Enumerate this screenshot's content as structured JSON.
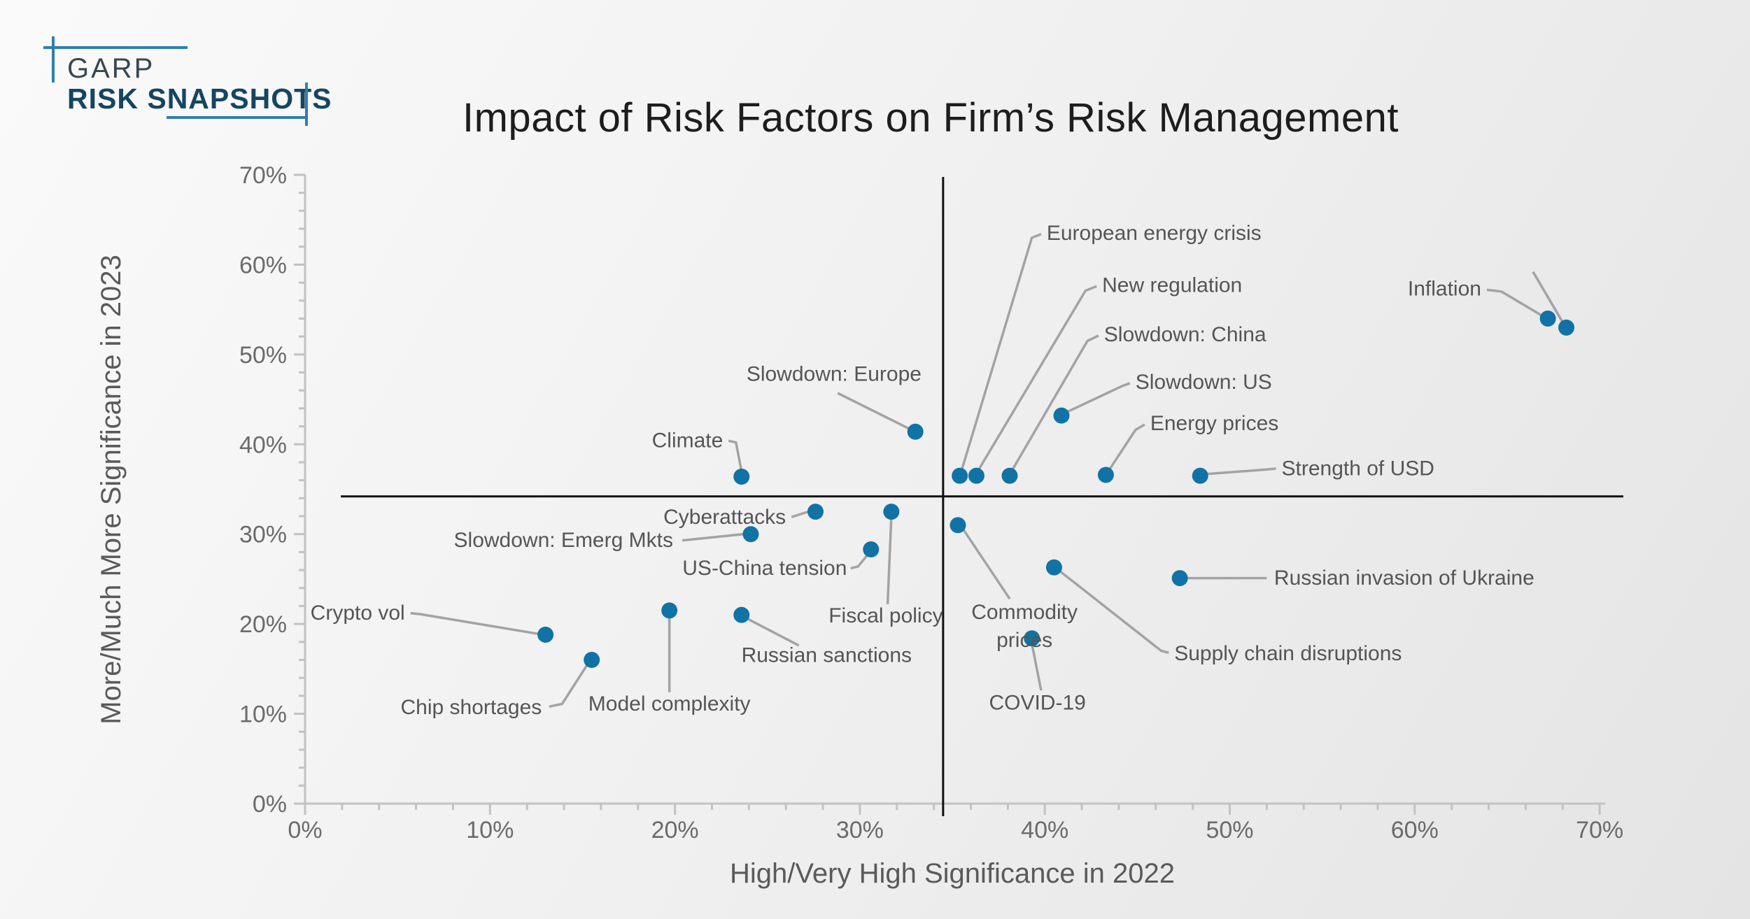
{
  "logo": {
    "line1": "GARP",
    "line2": "RISK SNAPSHOTS"
  },
  "title": "Impact of Risk Factors on Firm’s Risk Management",
  "colors": {
    "accent": "#2f7fad",
    "logo_garp_text": "#39474f",
    "logo_risk_text": "#15465f",
    "dot": "#1172a5",
    "leader": "#a3a3a3",
    "axis": "#c2c2c2",
    "tick_text": "#6b6b6b",
    "axis_title_text": "#5a5a5a",
    "annotation_text": "#555555",
    "divider": "#111111",
    "title_text": "#1d1d1d"
  },
  "chart_data": {
    "type": "scatter",
    "title": "Impact of Risk Factors on Firm’s Risk Management",
    "xlabel": "High/Very High Significance in 2022",
    "ylabel": "More/Much More Significance in 2023",
    "xlim": [
      0,
      70
    ],
    "ylim": [
      0,
      70
    ],
    "x_tick_labels": [
      "0%",
      "10%",
      "20%",
      "30%",
      "40%",
      "50%",
      "60%",
      "70%"
    ],
    "y_tick_labels": [
      "0%",
      "10%",
      "20%",
      "30%",
      "40%",
      "50%",
      "60%",
      "70%"
    ],
    "major_tick_step": 10,
    "minor_tick_step": 2,
    "grid": false,
    "legend": "none",
    "quadrant_divider": {
      "x_pct": 34.5,
      "y_pct": 34.2
    },
    "points": [
      {
        "id": "inflation",
        "label": "Inflation",
        "x": 67.2,
        "y": 54.0,
        "label_x": 63.6,
        "label_y": 57.3,
        "align": "end",
        "leader": [
          [
            66.9,
            54.3
          ],
          [
            64.7,
            57.0
          ],
          [
            63.9,
            57.2
          ]
        ]
      },
      {
        "id": "inflation-second-point",
        "label": "",
        "x": 68.2,
        "y": 53.0,
        "label_x": null,
        "label_y": null,
        "align": "start",
        "leader": [
          [
            68.0,
            53.6
          ],
          [
            66.4,
            59.2
          ]
        ]
      },
      {
        "id": "strength-of-usd",
        "label": "Strength of USD",
        "x": 48.4,
        "y": 36.5,
        "label_x": 52.8,
        "label_y": 37.3,
        "align": "start",
        "leader": [
          [
            48.8,
            36.7
          ],
          [
            52.0,
            37.2
          ],
          [
            52.5,
            37.3
          ]
        ]
      },
      {
        "id": "energy-prices",
        "label": "Energy prices",
        "x": 43.3,
        "y": 36.6,
        "label_x": 45.7,
        "label_y": 42.3,
        "align": "start",
        "leader": [
          [
            43.4,
            36.9
          ],
          [
            44.9,
            41.6
          ],
          [
            45.4,
            42.2
          ]
        ]
      },
      {
        "id": "slowdown-us",
        "label": "Slowdown: US",
        "x": 40.9,
        "y": 43.2,
        "label_x": 44.9,
        "label_y": 46.9,
        "align": "start",
        "leader": [
          [
            41.2,
            43.6
          ],
          [
            44.2,
            46.5
          ],
          [
            44.6,
            46.8
          ]
        ]
      },
      {
        "id": "slowdown-china",
        "label": "Slowdown: China",
        "x": 38.1,
        "y": 36.5,
        "label_x": 43.2,
        "label_y": 52.2,
        "align": "start",
        "leader": [
          [
            38.2,
            37.0
          ],
          [
            42.3,
            51.5
          ],
          [
            42.9,
            52.1
          ]
        ]
      },
      {
        "id": "new-regulation",
        "label": "New regulation",
        "x": 36.3,
        "y": 36.5,
        "label_x": 43.1,
        "label_y": 57.7,
        "align": "start",
        "leader": [
          [
            36.4,
            37.1
          ],
          [
            42.2,
            57.1
          ],
          [
            42.8,
            57.6
          ]
        ]
      },
      {
        "id": "european-energy-crisis",
        "label": "European energy crisis",
        "x": 35.4,
        "y": 36.5,
        "label_x": 40.1,
        "label_y": 63.5,
        "align": "start",
        "leader": [
          [
            35.5,
            37.1
          ],
          [
            39.3,
            63.0
          ],
          [
            39.8,
            63.4
          ]
        ]
      },
      {
        "id": "slowdown-europe",
        "label": "Slowdown: Europe",
        "x": 33.0,
        "y": 41.4,
        "label_x": 28.6,
        "label_y": 47.8,
        "align": "middle",
        "leader": [
          [
            32.7,
            41.7
          ],
          [
            28.8,
            45.7
          ]
        ]
      },
      {
        "id": "climate",
        "label": "Climate",
        "x": 23.6,
        "y": 36.4,
        "label_x": 22.6,
        "label_y": 40.4,
        "align": "end",
        "leader": [
          [
            23.6,
            37.0
          ],
          [
            23.3,
            40.2
          ],
          [
            22.9,
            40.4
          ]
        ]
      },
      {
        "id": "cyberattacks",
        "label": "Cyberattacks",
        "x": 27.6,
        "y": 32.5,
        "label_x": 26.0,
        "label_y": 31.9,
        "align": "end",
        "leader": [
          [
            27.2,
            32.5
          ],
          [
            26.3,
            31.9
          ]
        ]
      },
      {
        "id": "fiscal-policy",
        "label": "Fiscal policy",
        "x": 31.7,
        "y": 32.5,
        "label_x": 31.4,
        "label_y": 20.9,
        "align": "middle",
        "leader": [
          [
            31.7,
            31.9
          ],
          [
            31.5,
            22.2
          ]
        ]
      },
      {
        "id": "us-china-tension",
        "label": "US-China tension",
        "x": 30.6,
        "y": 28.3,
        "label_x": 29.3,
        "label_y": 26.2,
        "align": "end",
        "leader": [
          [
            30.5,
            27.9
          ],
          [
            29.9,
            26.4
          ],
          [
            29.5,
            26.2
          ]
        ]
      },
      {
        "id": "slowdown-emerg-mkts",
        "label": "Slowdown: Emerg Mkts",
        "x": 24.1,
        "y": 30.0,
        "label_x": 19.9,
        "label_y": 29.3,
        "align": "end",
        "leader": [
          [
            23.7,
            30.0
          ],
          [
            20.4,
            29.3
          ]
        ]
      },
      {
        "id": "commodity-prices",
        "label": "Commodity prices",
        "lines": [
          "Commodity",
          "prices"
        ],
        "x": 35.3,
        "y": 31.0,
        "label_x": 38.9,
        "label_y": 21.3,
        "align": "middle",
        "leader": [
          [
            35.6,
            30.5
          ],
          [
            38.1,
            22.8
          ]
        ]
      },
      {
        "id": "supply-chain-disruptions",
        "label": "Supply chain disruptions",
        "x": 40.5,
        "y": 26.3,
        "label_x": 47.0,
        "label_y": 16.7,
        "align": "start",
        "leader": [
          [
            40.8,
            25.9
          ],
          [
            46.3,
            17.0
          ],
          [
            46.7,
            16.8
          ]
        ]
      },
      {
        "id": "russian-invasion-of-ukraine",
        "label": "Russian invasion of Ukraine",
        "x": 47.3,
        "y": 25.1,
        "label_x": 52.4,
        "label_y": 25.1,
        "align": "start",
        "leader": [
          [
            47.7,
            25.1
          ],
          [
            52.0,
            25.1
          ]
        ]
      },
      {
        "id": "russian-sanctions",
        "label": "Russian sanctions",
        "x": 23.6,
        "y": 21.0,
        "label_x": 28.2,
        "label_y": 16.5,
        "align": "middle",
        "leader": [
          [
            23.9,
            20.6
          ],
          [
            26.7,
            17.6
          ]
        ]
      },
      {
        "id": "model-complexity",
        "label": "Model complexity",
        "x": 19.7,
        "y": 21.5,
        "label_x": 19.7,
        "label_y": 11.1,
        "align": "middle",
        "leader": [
          [
            19.7,
            20.9
          ],
          [
            19.7,
            12.4
          ]
        ]
      },
      {
        "id": "crypto-vol",
        "label": "Crypto vol",
        "x": 13.0,
        "y": 18.8,
        "label_x": 5.4,
        "label_y": 21.2,
        "align": "end",
        "leader": [
          [
            12.6,
            18.9
          ],
          [
            6.2,
            21.1
          ],
          [
            5.7,
            21.2
          ]
        ]
      },
      {
        "id": "chip-shortages",
        "label": "Chip shortages",
        "x": 15.5,
        "y": 16.0,
        "label_x": 12.8,
        "label_y": 10.7,
        "align": "end",
        "leader": [
          [
            15.3,
            15.6
          ],
          [
            13.9,
            11.1
          ],
          [
            13.2,
            10.8
          ]
        ]
      },
      {
        "id": "covid-19",
        "label": "COVID-19",
        "x": 39.3,
        "y": 18.4,
        "label_x": 39.6,
        "label_y": 11.2,
        "align": "middle",
        "leader": [
          [
            39.3,
            17.8
          ],
          [
            39.8,
            12.6
          ]
        ]
      }
    ]
  }
}
